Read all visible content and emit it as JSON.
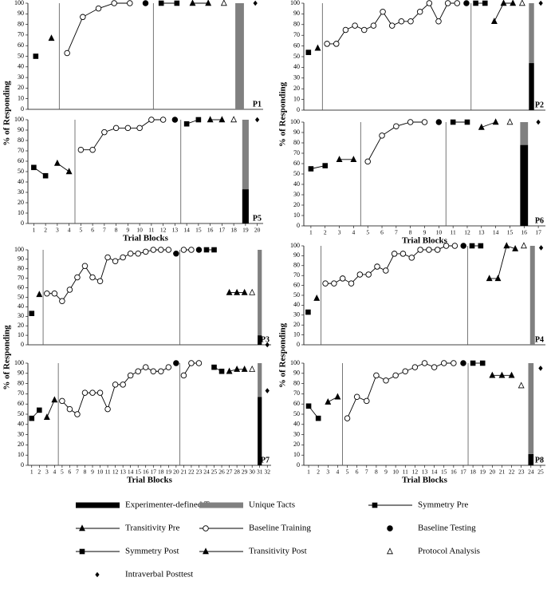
{
  "chart_data": {
    "type": "line",
    "y_label": "% of Responding",
    "x_label": "Trial Blocks",
    "ylim": [
      0,
      100
    ],
    "yticks": [
      0,
      10,
      20,
      30,
      40,
      50,
      60,
      70,
      80,
      90,
      100
    ],
    "series": [
      {
        "name": "Experimenter-defined Tacts",
        "color": "#000000",
        "marker": "bar",
        "connected": false
      },
      {
        "name": "Unique Tacts",
        "color": "#808080",
        "marker": "bar",
        "connected": false
      },
      {
        "name": "Symmetry Pre",
        "color": "#000000",
        "marker": "square",
        "connected": true
      },
      {
        "name": "Transitivity Pre",
        "color": "#000000",
        "marker": "triangle",
        "connected": true
      },
      {
        "name": "Baseline Training",
        "color": "#000000",
        "marker": "circle-open",
        "connected": true
      },
      {
        "name": "Baseline Testing",
        "color": "#000000",
        "marker": "circle",
        "connected": false
      },
      {
        "name": "Symmetry Post",
        "color": "#000000",
        "marker": "square",
        "connected": true
      },
      {
        "name": "Transitivity Post",
        "color": "#000000",
        "marker": "triangle",
        "connected": true
      },
      {
        "name": "Protocol Analysis",
        "color": "#000000",
        "marker": "triangle-open",
        "connected": false
      },
      {
        "name": "Intraverbal Posttest",
        "color": "#000000",
        "marker": "diamond",
        "connected": false
      }
    ],
    "panels": [
      {
        "label": "P1",
        "xlim": [
          0.5,
          15.5
        ],
        "data": [
          {
            "x": [
              14
            ],
            "values": [
              0
            ]
          },
          {
            "x": [
              14
            ],
            "values": [
              100
            ]
          },
          {
            "x": [
              1
            ],
            "values": [
              50
            ]
          },
          {
            "x": [
              2
            ],
            "values": [
              67
            ]
          },
          {
            "x": [
              3,
              4,
              5,
              6,
              7
            ],
            "values": [
              53,
              87,
              95,
              100,
              100
            ]
          },
          {
            "x": [
              8
            ],
            "values": [
              100
            ]
          },
          {
            "x": [
              9,
              10
            ],
            "values": [
              100,
              100
            ]
          },
          {
            "x": [
              11,
              12
            ],
            "values": [
              100,
              100
            ]
          },
          {
            "x": [
              13
            ],
            "values": [
              100
            ]
          },
          {
            "x": [
              15
            ],
            "values": [
              100
            ]
          }
        ]
      },
      {
        "label": "P2",
        "xlim": [
          0.5,
          26.5
        ],
        "data": [
          {
            "x": [
              25
            ],
            "values": [
              44
            ]
          },
          {
            "x": [
              25
            ],
            "values": [
              56
            ]
          },
          {
            "x": [
              1
            ],
            "values": [
              54
            ]
          },
          {
            "x": [
              2
            ],
            "values": [
              58
            ]
          },
          {
            "x": [
              3,
              4,
              5,
              6,
              7,
              8,
              9,
              10,
              11,
              12,
              13,
              14,
              15,
              16,
              17
            ],
            "values": [
              62,
              62,
              75,
              79,
              75,
              79,
              92,
              79,
              83,
              83,
              92,
              100,
              83,
              100,
              100
            ]
          },
          {
            "x": [
              18
            ],
            "values": [
              100
            ]
          },
          {
            "x": [
              19,
              20
            ],
            "values": [
              100,
              100
            ]
          },
          {
            "x": [
              21,
              22,
              23
            ],
            "values": [
              83,
              100,
              100
            ]
          },
          {
            "x": [
              24
            ],
            "values": [
              100
            ]
          },
          {
            "x": [
              26
            ],
            "values": [
              100
            ]
          }
        ]
      },
      {
        "label": "P3",
        "xlim": [
          0.5,
          32.5
        ],
        "data": [
          {
            "x": [
              31
            ],
            "values": [
              10
            ]
          },
          {
            "x": [
              31
            ],
            "values": [
              90
            ]
          },
          {
            "x": [
              1
            ],
            "values": [
              33
            ]
          },
          {
            "x": [
              2
            ],
            "values": [
              53
            ]
          },
          {
            "x": [
              3,
              4,
              5,
              6,
              7,
              8,
              9,
              10,
              11,
              12,
              13,
              14,
              15,
              16,
              17,
              18,
              19,
              20,
              21,
              22
            ],
            "values": [
              54,
              54,
              46,
              58,
              71,
              83,
              71,
              67,
              92,
              88,
              92,
              96,
              96,
              98,
              100,
              100,
              100,
              null,
              100,
              100
            ]
          },
          {
            "x": [
              20,
              21,
              22,
              23
            ],
            "values": [
              96,
              null,
              null,
              100
            ]
          },
          {
            "x": [
              24,
              25
            ],
            "values": [
              100,
              100
            ]
          },
          {
            "x": [
              27,
              28,
              29
            ],
            "values": [
              55,
              55,
              55
            ]
          },
          {
            "x": [
              30
            ],
            "values": [
              55
            ]
          },
          {
            "x": [
              32
            ],
            "values": [
              0
            ]
          }
        ]
      },
      {
        "label": "P4",
        "xlim": [
          0.5,
          28.5
        ],
        "data": [
          {
            "x": [
              27
            ],
            "values": [
              0
            ]
          },
          {
            "x": [
              27
            ],
            "values": [
              100
            ]
          },
          {
            "x": [
              1
            ],
            "values": [
              33
            ]
          },
          {
            "x": [
              2
            ],
            "values": [
              47
            ]
          },
          {
            "x": [
              3,
              4,
              5,
              6,
              7,
              8,
              9,
              10,
              11,
              12,
              13,
              14,
              15,
              16,
              17,
              18
            ],
            "values": [
              62,
              62,
              67,
              62,
              71,
              71,
              79,
              75,
              92,
              92,
              88,
              96,
              96,
              96,
              100,
              100
            ]
          },
          {
            "x": [
              19
            ],
            "values": [
              100
            ]
          },
          {
            "x": [
              20,
              21
            ],
            "values": [
              100,
              100
            ]
          },
          {
            "x": [
              22,
              23,
              24,
              25
            ],
            "values": [
              67,
              67,
              100,
              97
            ]
          },
          {
            "x": [
              26
            ],
            "values": [
              100
            ]
          },
          {
            "x": [
              28
            ],
            "values": [
              98
            ]
          }
        ]
      },
      {
        "label": "P5",
        "xlim": [
          0.5,
          20.5
        ],
        "xticks": [
          1,
          2,
          3,
          4,
          5,
          6,
          7,
          8,
          9,
          10,
          11,
          12,
          13,
          14,
          15,
          16,
          17,
          18,
          19,
          20
        ],
        "data": [
          {
            "x": [
              19
            ],
            "values": [
              33
            ]
          },
          {
            "x": [
              19
            ],
            "values": [
              67
            ]
          },
          {
            "x": [
              1,
              2
            ],
            "values": [
              54,
              46
            ]
          },
          {
            "x": [
              3,
              4
            ],
            "values": [
              58,
              50
            ]
          },
          {
            "x": [
              5,
              6,
              7,
              8,
              9,
              10,
              11,
              12
            ],
            "values": [
              71,
              71,
              88,
              92,
              92,
              92,
              100,
              100
            ]
          },
          {
            "x": [
              13
            ],
            "values": [
              100
            ]
          },
          {
            "x": [
              14,
              15
            ],
            "values": [
              96,
              100
            ]
          },
          {
            "x": [
              16,
              17
            ],
            "values": [
              100,
              100
            ]
          },
          {
            "x": [
              18
            ],
            "values": [
              100
            ]
          },
          {
            "x": [
              20
            ],
            "values": [
              100
            ]
          }
        ]
      },
      {
        "label": "P6",
        "xlim": [
          0.5,
          17.5
        ],
        "xticks": [
          1,
          2,
          3,
          4,
          5,
          6,
          7,
          8,
          9,
          10,
          11,
          12,
          13,
          14,
          15,
          16,
          17
        ],
        "data": [
          {
            "x": [
              16
            ],
            "values": [
              78
            ]
          },
          {
            "x": [
              16
            ],
            "values": [
              22
            ]
          },
          {
            "x": [
              1,
              2
            ],
            "values": [
              55,
              58
            ]
          },
          {
            "x": [
              3,
              4
            ],
            "values": [
              64,
              64
            ]
          },
          {
            "x": [
              5,
              6,
              7,
              8,
              9
            ],
            "values": [
              62,
              87,
              96,
              100,
              100
            ]
          },
          {
            "x": [
              10
            ],
            "values": [
              100
            ]
          },
          {
            "x": [
              11,
              12
            ],
            "values": [
              100,
              100
            ]
          },
          {
            "x": [
              13,
              14
            ],
            "values": [
              95,
              100
            ]
          },
          {
            "x": [
              15
            ],
            "values": [
              100
            ]
          },
          {
            "x": [
              17
            ],
            "values": [
              100
            ]
          }
        ]
      },
      {
        "label": "P7",
        "xlim": [
          0.5,
          32.5
        ],
        "xticks": [
          1,
          2,
          3,
          4,
          5,
          6,
          7,
          8,
          9,
          10,
          11,
          12,
          13,
          14,
          15,
          16,
          17,
          18,
          19,
          20,
          21,
          22,
          23,
          24,
          25,
          26,
          27,
          28,
          29,
          30,
          31,
          32
        ],
        "data": [
          {
            "x": [
              31
            ],
            "values": [
              67
            ]
          },
          {
            "x": [
              31
            ],
            "values": [
              33
            ]
          },
          {
            "x": [
              1,
              2
            ],
            "values": [
              46,
              54
            ]
          },
          {
            "x": [
              3,
              4
            ],
            "values": [
              47,
              64
            ]
          },
          {
            "x": [
              5,
              6,
              7,
              8,
              9,
              10,
              11,
              12,
              13,
              14,
              15,
              16,
              17,
              18,
              19,
              20,
              21,
              22,
              23
            ],
            "values": [
              63,
              55,
              50,
              71,
              71,
              71,
              55,
              79,
              79,
              88,
              92,
              96,
              92,
              92,
              96,
              null,
              88,
              100,
              100
            ]
          },
          {
            "x": [
              20
            ],
            "values": [
              100
            ]
          },
          {
            "x": [
              25,
              26
            ],
            "values": [
              96,
              92
            ]
          },
          {
            "x": [
              27,
              28,
              29
            ],
            "values": [
              92,
              94,
              94
            ]
          },
          {
            "x": [
              30
            ],
            "values": [
              94
            ]
          },
          {
            "x": [
              32
            ],
            "values": [
              73
            ]
          }
        ]
      },
      {
        "label": "P8",
        "xlim": [
          0.5,
          25.5
        ],
        "xticks": [
          1,
          2,
          3,
          4,
          5,
          6,
          7,
          8,
          9,
          10,
          11,
          12,
          13,
          14,
          15,
          16,
          17,
          18,
          19,
          20,
          21,
          22,
          23,
          24,
          25
        ],
        "data": [
          {
            "x": [
              24
            ],
            "values": [
              11
            ]
          },
          {
            "x": [
              24
            ],
            "values": [
              89
            ]
          },
          {
            "x": [
              1,
              2
            ],
            "values": [
              58,
              46
            ]
          },
          {
            "x": [
              3,
              4
            ],
            "values": [
              62,
              67
            ]
          },
          {
            "x": [
              5,
              6,
              7,
              8,
              9,
              10,
              11,
              12,
              13,
              14,
              15,
              16
            ],
            "values": [
              46,
              67,
              63,
              88,
              83,
              88,
              92,
              96,
              100,
              96,
              100,
              100
            ]
          },
          {
            "x": [
              17
            ],
            "values": [
              100
            ]
          },
          {
            "x": [
              18,
              19
            ],
            "values": [
              100,
              100
            ]
          },
          {
            "x": [
              20,
              21,
              22
            ],
            "values": [
              88,
              88,
              88
            ]
          },
          {
            "x": [
              23
            ],
            "values": [
              78
            ]
          },
          {
            "x": [
              25
            ],
            "values": [
              95
            ]
          }
        ]
      }
    ]
  }
}
